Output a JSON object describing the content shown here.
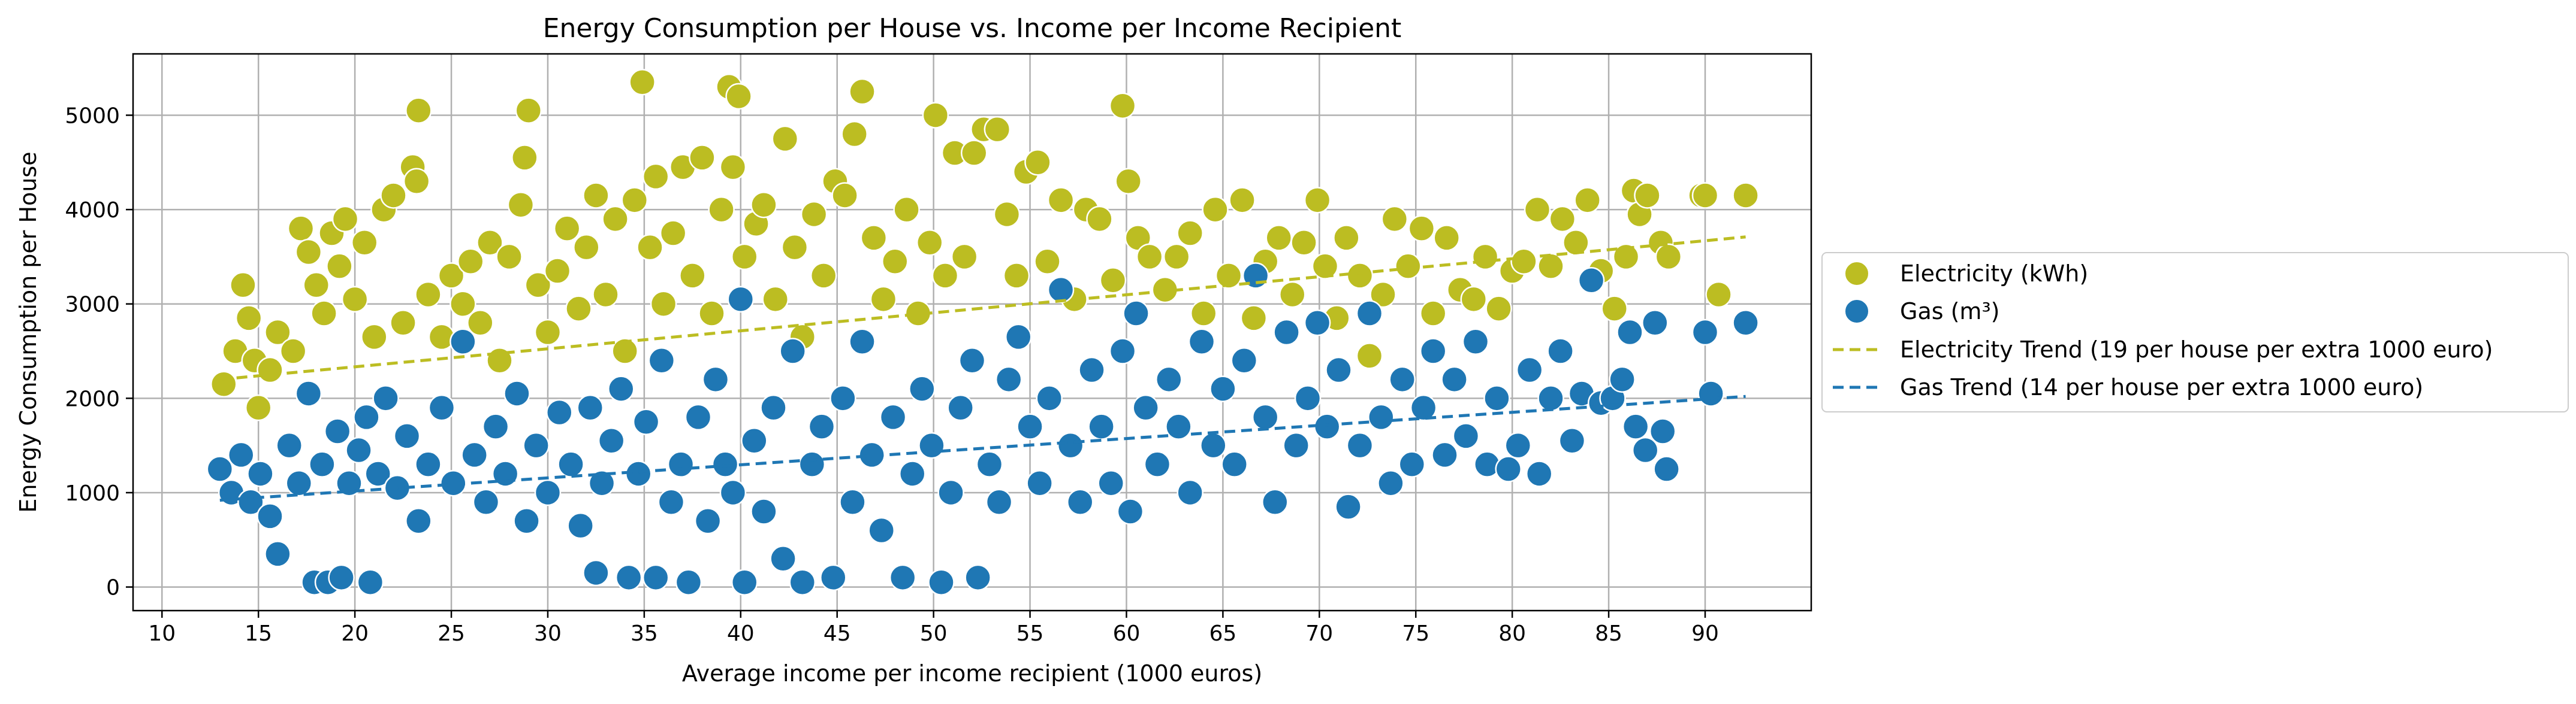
{
  "chart_data": {
    "type": "scatter",
    "title": "Energy Consumption per House vs. Income per Income Recipient",
    "xlabel": "Average income per income recipient (1000 euros)",
    "ylabel": "Energy Consumption per House",
    "xlim": [
      8.5,
      95.5
    ],
    "ylim": [
      -250,
      5650
    ],
    "xticks": [
      10,
      15,
      20,
      25,
      30,
      35,
      40,
      45,
      50,
      55,
      60,
      65,
      70,
      75,
      80,
      85,
      90
    ],
    "yticks": [
      0,
      1000,
      2000,
      3000,
      4000,
      5000
    ],
    "grid": true,
    "legend_position": "outside right",
    "series": [
      {
        "name": "Electricity (kWh)",
        "kind": "scatter",
        "color": "#bcbd22",
        "points": [
          [
            13.2,
            2150
          ],
          [
            13.8,
            2500
          ],
          [
            14.2,
            3200
          ],
          [
            14.5,
            2850
          ],
          [
            14.8,
            2400
          ],
          [
            15.0,
            1900
          ],
          [
            15.6,
            2300
          ],
          [
            16.0,
            2700
          ],
          [
            16.8,
            2500
          ],
          [
            17.2,
            3800
          ],
          [
            17.6,
            3550
          ],
          [
            18.0,
            3200
          ],
          [
            18.4,
            2900
          ],
          [
            18.8,
            3750
          ],
          [
            19.2,
            3400
          ],
          [
            19.5,
            3900
          ],
          [
            20.0,
            3050
          ],
          [
            20.5,
            3650
          ],
          [
            21.0,
            2650
          ],
          [
            21.5,
            4000
          ],
          [
            22.0,
            4150
          ],
          [
            22.5,
            2800
          ],
          [
            23.0,
            4450
          ],
          [
            23.2,
            4300
          ],
          [
            23.3,
            5050
          ],
          [
            23.8,
            3100
          ],
          [
            24.5,
            2650
          ],
          [
            25.0,
            3300
          ],
          [
            25.6,
            3000
          ],
          [
            26.0,
            3450
          ],
          [
            26.5,
            2800
          ],
          [
            27.0,
            3650
          ],
          [
            27.5,
            2400
          ],
          [
            28.0,
            3500
          ],
          [
            28.6,
            4050
          ],
          [
            28.8,
            4550
          ],
          [
            29.0,
            5050
          ],
          [
            29.5,
            3200
          ],
          [
            30.0,
            2700
          ],
          [
            30.5,
            3350
          ],
          [
            31.0,
            3800
          ],
          [
            31.6,
            2950
          ],
          [
            32.0,
            3600
          ],
          [
            32.5,
            4150
          ],
          [
            33.0,
            3100
          ],
          [
            33.5,
            3900
          ],
          [
            34.0,
            2500
          ],
          [
            34.5,
            4100
          ],
          [
            34.9,
            5350
          ],
          [
            35.3,
            3600
          ],
          [
            35.6,
            4350
          ],
          [
            36.0,
            3000
          ],
          [
            36.5,
            3750
          ],
          [
            37.0,
            4450
          ],
          [
            37.5,
            3300
          ],
          [
            38.0,
            4550
          ],
          [
            38.5,
            2900
          ],
          [
            39.0,
            4000
          ],
          [
            39.4,
            5300
          ],
          [
            39.6,
            4450
          ],
          [
            39.9,
            5200
          ],
          [
            40.2,
            3500
          ],
          [
            40.8,
            3850
          ],
          [
            41.2,
            4050
          ],
          [
            41.8,
            3050
          ],
          [
            42.3,
            4750
          ],
          [
            42.8,
            3600
          ],
          [
            43.2,
            2650
          ],
          [
            43.8,
            3950
          ],
          [
            44.3,
            3300
          ],
          [
            44.9,
            4300
          ],
          [
            45.4,
            4150
          ],
          [
            45.9,
            4800
          ],
          [
            46.3,
            5250
          ],
          [
            46.9,
            3700
          ],
          [
            47.4,
            3050
          ],
          [
            48.0,
            3450
          ],
          [
            48.6,
            4000
          ],
          [
            49.2,
            2900
          ],
          [
            49.8,
            3650
          ],
          [
            50.1,
            5000
          ],
          [
            50.6,
            3300
          ],
          [
            51.1,
            4600
          ],
          [
            51.6,
            3500
          ],
          [
            52.1,
            4600
          ],
          [
            52.6,
            4850
          ],
          [
            53.3,
            4850
          ],
          [
            53.8,
            3950
          ],
          [
            54.3,
            3300
          ],
          [
            54.8,
            4400
          ],
          [
            55.4,
            4500
          ],
          [
            55.9,
            3450
          ],
          [
            56.6,
            4100
          ],
          [
            57.3,
            3050
          ],
          [
            57.9,
            4000
          ],
          [
            58.6,
            3900
          ],
          [
            59.3,
            3250
          ],
          [
            59.8,
            5100
          ],
          [
            60.1,
            4300
          ],
          [
            60.6,
            3700
          ],
          [
            61.2,
            3500
          ],
          [
            62.0,
            3150
          ],
          [
            62.6,
            3500
          ],
          [
            63.3,
            3750
          ],
          [
            64.0,
            2900
          ],
          [
            64.6,
            4000
          ],
          [
            65.3,
            3300
          ],
          [
            66.0,
            4100
          ],
          [
            66.6,
            2850
          ],
          [
            67.2,
            3450
          ],
          [
            67.9,
            3700
          ],
          [
            68.6,
            3100
          ],
          [
            69.2,
            3650
          ],
          [
            69.9,
            4100
          ],
          [
            70.3,
            3400
          ],
          [
            70.9,
            2850
          ],
          [
            71.4,
            3700
          ],
          [
            72.1,
            3300
          ],
          [
            72.6,
            2450
          ],
          [
            73.3,
            3100
          ],
          [
            73.9,
            3900
          ],
          [
            74.6,
            3400
          ],
          [
            75.3,
            3800
          ],
          [
            75.9,
            2900
          ],
          [
            76.6,
            3700
          ],
          [
            77.3,
            3150
          ],
          [
            78.0,
            3050
          ],
          [
            78.6,
            3500
          ],
          [
            79.3,
            2950
          ],
          [
            80.0,
            3350
          ],
          [
            80.6,
            3450
          ],
          [
            81.3,
            4000
          ],
          [
            82.0,
            3400
          ],
          [
            82.6,
            3900
          ],
          [
            83.3,
            3650
          ],
          [
            83.9,
            4100
          ],
          [
            84.6,
            3350
          ],
          [
            85.3,
            2950
          ],
          [
            85.9,
            3500
          ],
          [
            86.3,
            4200
          ],
          [
            86.6,
            3950
          ],
          [
            87.0,
            4150
          ],
          [
            87.7,
            3650
          ],
          [
            88.1,
            3500
          ],
          [
            89.8,
            4150
          ],
          [
            90.0,
            4150
          ],
          [
            90.7,
            3100
          ],
          [
            92.1,
            4150
          ]
        ]
      },
      {
        "name": "Gas (m³)",
        "kind": "scatter",
        "color": "#1f77b4",
        "points": [
          [
            13.0,
            1250
          ],
          [
            13.6,
            1000
          ],
          [
            14.1,
            1400
          ],
          [
            14.6,
            900
          ],
          [
            15.1,
            1200
          ],
          [
            15.6,
            750
          ],
          [
            16.0,
            350
          ],
          [
            16.6,
            1500
          ],
          [
            17.1,
            1100
          ],
          [
            17.6,
            2050
          ],
          [
            17.9,
            50
          ],
          [
            18.3,
            1300
          ],
          [
            18.6,
            50
          ],
          [
            19.1,
            1650
          ],
          [
            19.3,
            100
          ],
          [
            19.7,
            1100
          ],
          [
            20.2,
            1450
          ],
          [
            20.6,
            1800
          ],
          [
            20.8,
            50
          ],
          [
            21.2,
            1200
          ],
          [
            21.6,
            2000
          ],
          [
            22.2,
            1050
          ],
          [
            22.7,
            1600
          ],
          [
            23.3,
            700
          ],
          [
            23.8,
            1300
          ],
          [
            24.5,
            1900
          ],
          [
            25.1,
            1100
          ],
          [
            25.6,
            2600
          ],
          [
            26.2,
            1400
          ],
          [
            26.8,
            900
          ],
          [
            27.3,
            1700
          ],
          [
            27.8,
            1200
          ],
          [
            28.4,
            2050
          ],
          [
            28.9,
            700
          ],
          [
            29.4,
            1500
          ],
          [
            30.0,
            1000
          ],
          [
            30.6,
            1850
          ],
          [
            31.2,
            1300
          ],
          [
            31.7,
            650
          ],
          [
            32.2,
            1900
          ],
          [
            32.5,
            150
          ],
          [
            32.8,
            1100
          ],
          [
            33.3,
            1550
          ],
          [
            33.8,
            2100
          ],
          [
            34.2,
            100
          ],
          [
            34.7,
            1200
          ],
          [
            35.1,
            1750
          ],
          [
            35.6,
            100
          ],
          [
            35.9,
            2400
          ],
          [
            36.4,
            900
          ],
          [
            36.9,
            1300
          ],
          [
            37.3,
            50
          ],
          [
            37.8,
            1800
          ],
          [
            38.3,
            700
          ],
          [
            38.7,
            2200
          ],
          [
            39.2,
            1300
          ],
          [
            39.6,
            1000
          ],
          [
            40.0,
            3050
          ],
          [
            40.2,
            50
          ],
          [
            40.7,
            1550
          ],
          [
            41.2,
            800
          ],
          [
            41.7,
            1900
          ],
          [
            42.2,
            300
          ],
          [
            42.7,
            2500
          ],
          [
            43.2,
            50
          ],
          [
            43.7,
            1300
          ],
          [
            44.2,
            1700
          ],
          [
            44.8,
            100
          ],
          [
            45.3,
            2000
          ],
          [
            45.8,
            900
          ],
          [
            46.3,
            2600
          ],
          [
            46.8,
            1400
          ],
          [
            47.3,
            600
          ],
          [
            47.9,
            1800
          ],
          [
            48.4,
            100
          ],
          [
            48.9,
            1200
          ],
          [
            49.4,
            2100
          ],
          [
            49.9,
            1500
          ],
          [
            50.4,
            50
          ],
          [
            50.9,
            1000
          ],
          [
            51.4,
            1900
          ],
          [
            52.0,
            2400
          ],
          [
            52.3,
            100
          ],
          [
            52.9,
            1300
          ],
          [
            53.4,
            900
          ],
          [
            53.9,
            2200
          ],
          [
            54.4,
            2650
          ],
          [
            55.0,
            1700
          ],
          [
            55.5,
            1100
          ],
          [
            56.0,
            2000
          ],
          [
            56.6,
            3150
          ],
          [
            57.1,
            1500
          ],
          [
            57.6,
            900
          ],
          [
            58.2,
            2300
          ],
          [
            58.7,
            1700
          ],
          [
            59.2,
            1100
          ],
          [
            59.8,
            2500
          ],
          [
            60.2,
            800
          ],
          [
            60.5,
            2900
          ],
          [
            61.0,
            1900
          ],
          [
            61.6,
            1300
          ],
          [
            62.2,
            2200
          ],
          [
            62.7,
            1700
          ],
          [
            63.3,
            1000
          ],
          [
            63.9,
            2600
          ],
          [
            64.5,
            1500
          ],
          [
            65.0,
            2100
          ],
          [
            65.6,
            1300
          ],
          [
            66.1,
            2400
          ],
          [
            66.7,
            3300
          ],
          [
            67.2,
            1800
          ],
          [
            67.7,
            900
          ],
          [
            68.3,
            2700
          ],
          [
            68.8,
            1500
          ],
          [
            69.4,
            2000
          ],
          [
            69.9,
            2800
          ],
          [
            70.4,
            1700
          ],
          [
            71.0,
            2300
          ],
          [
            71.5,
            850
          ],
          [
            72.1,
            1500
          ],
          [
            72.6,
            2900
          ],
          [
            73.2,
            1800
          ],
          [
            73.7,
            1100
          ],
          [
            74.3,
            2200
          ],
          [
            74.8,
            1300
          ],
          [
            75.4,
            1900
          ],
          [
            75.9,
            2500
          ],
          [
            76.5,
            1400
          ],
          [
            77.0,
            2200
          ],
          [
            77.6,
            1600
          ],
          [
            78.1,
            2600
          ],
          [
            78.7,
            1300
          ],
          [
            79.2,
            2000
          ],
          [
            79.8,
            1250
          ],
          [
            80.3,
            1500
          ],
          [
            80.9,
            2300
          ],
          [
            81.4,
            1200
          ],
          [
            82.0,
            2000
          ],
          [
            82.5,
            2500
          ],
          [
            83.1,
            1550
          ],
          [
            83.6,
            2050
          ],
          [
            84.1,
            3250
          ],
          [
            84.6,
            1950
          ],
          [
            85.2,
            2000
          ],
          [
            85.7,
            2200
          ],
          [
            86.1,
            2700
          ],
          [
            86.4,
            1700
          ],
          [
            86.9,
            1450
          ],
          [
            87.4,
            2800
          ],
          [
            87.8,
            1650
          ],
          [
            88.0,
            1250
          ],
          [
            90.0,
            2700
          ],
          [
            90.3,
            2050
          ],
          [
            92.1,
            2800
          ]
        ]
      },
      {
        "name": "Electricity Trend (19 per house per extra 1000 euro)",
        "kind": "line",
        "style": "dashed",
        "color": "#bcbd22",
        "x": [
          13.0,
          92.1
        ],
        "y": [
          2200,
          3710
        ]
      },
      {
        "name": "Gas Trend (14 per house per extra 1000 euro)",
        "kind": "line",
        "style": "dashed",
        "color": "#1f77b4",
        "x": [
          13.0,
          92.1
        ],
        "y": [
          920,
          2020
        ]
      }
    ]
  }
}
